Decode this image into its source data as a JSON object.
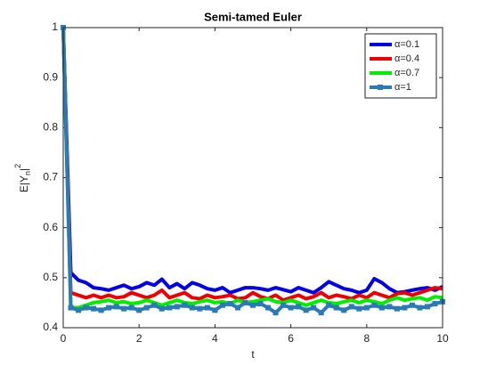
{
  "chart_data": {
    "type": "line",
    "title": "Semi-tamed Euler",
    "xlabel": "t",
    "ylabel": {
      "base": "E|Y",
      "sub": "n",
      "close": "|",
      "sup": "2"
    },
    "x": [
      0,
      0.2,
      0.4,
      0.6,
      0.8,
      1,
      1.2,
      1.4,
      1.6,
      1.8,
      2,
      2.2,
      2.4,
      2.6,
      2.8,
      3,
      3.2,
      3.4,
      3.6,
      3.8,
      4,
      4.2,
      4.4,
      4.6,
      4.8,
      5,
      5.2,
      5.4,
      5.6,
      5.8,
      6,
      6.2,
      6.4,
      6.6,
      6.8,
      7,
      7.2,
      7.4,
      7.6,
      7.8,
      8,
      8.2,
      8.4,
      8.6,
      8.8,
      9,
      9.2,
      9.4,
      9.6,
      9.8,
      10
    ],
    "series": [
      {
        "name": "α=0.1",
        "color": "#0000e6",
        "values": [
          1,
          0.51,
          0.495,
          0.49,
          0.48,
          0.478,
          0.475,
          0.48,
          0.485,
          0.478,
          0.482,
          0.49,
          0.485,
          0.497,
          0.48,
          0.488,
          0.478,
          0.49,
          0.485,
          0.478,
          0.475,
          0.48,
          0.47,
          0.475,
          0.48,
          0.48,
          0.478,
          0.475,
          0.48,
          0.476,
          0.472,
          0.48,
          0.475,
          0.47,
          0.48,
          0.492,
          0.485,
          0.478,
          0.475,
          0.47,
          0.475,
          0.498,
          0.49,
          0.478,
          0.47,
          0.472,
          0.475,
          0.478,
          0.48,
          0.475,
          0.482
        ]
      },
      {
        "name": "α=0.4",
        "color": "#ee0000",
        "values": [
          1,
          0.47,
          0.465,
          0.46,
          0.465,
          0.46,
          0.465,
          0.46,
          0.462,
          0.47,
          0.465,
          0.46,
          0.465,
          0.475,
          0.46,
          0.465,
          0.47,
          0.46,
          0.458,
          0.465,
          0.46,
          0.462,
          0.465,
          0.458,
          0.46,
          0.47,
          0.462,
          0.458,
          0.465,
          0.455,
          0.46,
          0.465,
          0.458,
          0.462,
          0.47,
          0.46,
          0.465,
          0.462,
          0.458,
          0.465,
          0.46,
          0.47,
          0.465,
          0.46,
          0.468,
          0.47,
          0.465,
          0.47,
          0.475,
          0.48,
          0.478
        ]
      },
      {
        "name": "α=0.7",
        "color": "#00ee00",
        "values": [
          1,
          0.44,
          0.44,
          0.445,
          0.45,
          0.452,
          0.455,
          0.45,
          0.452,
          0.448,
          0.45,
          0.455,
          0.45,
          0.445,
          0.45,
          0.455,
          0.45,
          0.448,
          0.452,
          0.455,
          0.45,
          0.452,
          0.448,
          0.455,
          0.45,
          0.452,
          0.455,
          0.458,
          0.452,
          0.45,
          0.455,
          0.45,
          0.445,
          0.45,
          0.455,
          0.45,
          0.448,
          0.452,
          0.455,
          0.45,
          0.455,
          0.452,
          0.448,
          0.455,
          0.46,
          0.455,
          0.458,
          0.46,
          0.455,
          0.462,
          0.46
        ]
      },
      {
        "name": "α=1",
        "color": "#2a7ab8",
        "marker": "square",
        "values": [
          1,
          0.44,
          0.435,
          0.44,
          0.438,
          0.435,
          0.44,
          0.442,
          0.438,
          0.44,
          0.435,
          0.44,
          0.445,
          0.438,
          0.44,
          0.442,
          0.445,
          0.44,
          0.438,
          0.44,
          0.435,
          0.445,
          0.448,
          0.44,
          0.45,
          0.445,
          0.448,
          0.44,
          0.43,
          0.445,
          0.44,
          0.442,
          0.435,
          0.44,
          0.43,
          0.445,
          0.44,
          0.435,
          0.442,
          0.438,
          0.44,
          0.445,
          0.44,
          0.442,
          0.438,
          0.44,
          0.445,
          0.44,
          0.442,
          0.448,
          0.452
        ]
      }
    ],
    "xlim": [
      0,
      10
    ],
    "xticks": [
      0,
      2,
      4,
      6,
      8,
      10
    ],
    "ylim": [
      0.4,
      1
    ],
    "yticks": [
      0.4,
      0.5,
      0.6,
      0.7,
      0.8,
      0.9,
      1
    ],
    "legend": "top-right"
  }
}
